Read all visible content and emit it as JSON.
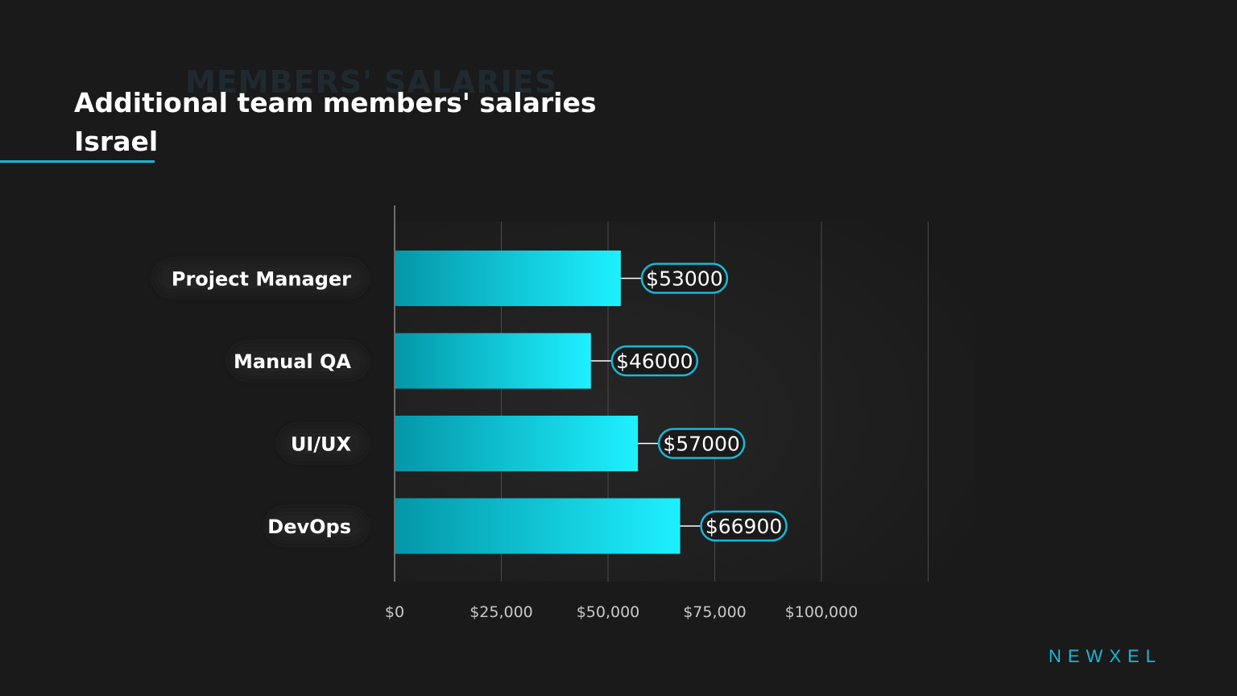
{
  "header": {
    "ghost_text": "MEMBERS' SALARIES",
    "title": "Additional team members' salaries",
    "subtitle": "Israel"
  },
  "brand": "NEWXEL",
  "colors": {
    "background": "#1a1a1a",
    "bar_start": "#0497a8",
    "bar_end": "#1ef0ff",
    "accent": "#19b8d4",
    "grid": "#4a4a4a",
    "tick_text": "#c8c8c8"
  },
  "chart_data": {
    "type": "bar",
    "orientation": "horizontal",
    "categories": [
      "Project Manager",
      "Manual QA",
      "UI/UX",
      "DevOps"
    ],
    "values": [
      53000,
      46000,
      57000,
      66900
    ],
    "value_labels": [
      "$53000",
      "$46000",
      "$57000",
      "$66900"
    ],
    "xlim": [
      0,
      125000
    ],
    "xticks": [
      0,
      25000,
      50000,
      75000,
      100000
    ],
    "xtick_labels": [
      "$0",
      "$25,000",
      "$50,000",
      "$75,000",
      "$100,000"
    ],
    "grid": true
  }
}
